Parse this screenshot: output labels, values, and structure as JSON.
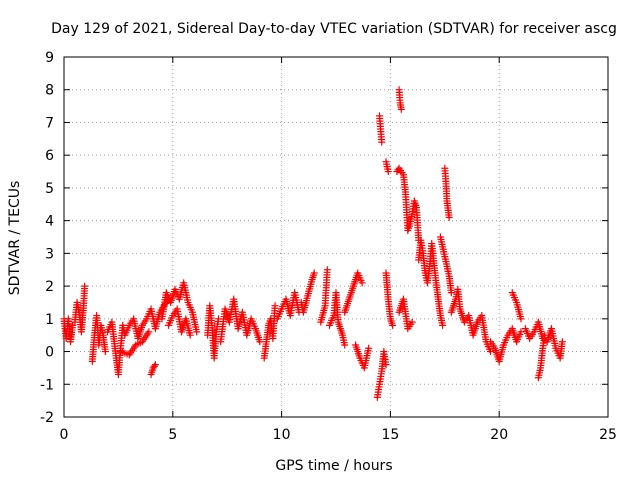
{
  "chart_data": {
    "type": "scatter",
    "title": "Day 129 of 2021, Sidereal Day-to-day VTEC variation (SDTVAR) for receiver ascg",
    "xlabel": "GPS time / hours",
    "ylabel": "SDTVAR / TECUs",
    "xlim": [
      0,
      25
    ],
    "ylim": [
      -2,
      9
    ],
    "xticks": [
      0,
      5,
      10,
      15,
      20,
      25
    ],
    "yticks": [
      -2,
      -1,
      0,
      1,
      2,
      3,
      4,
      5,
      6,
      7,
      8,
      9
    ],
    "grid": true,
    "legend": "none",
    "marker": "+",
    "series": [
      {
        "name": "SDTVAR",
        "color": "#ff0000",
        "segments": [
          [
            [
              0.0,
              1.0
            ],
            [
              0.1,
              0.4
            ],
            [
              0.2,
              1.0
            ],
            [
              0.3,
              0.3
            ],
            [
              0.4,
              0.8
            ]
          ],
          [
            [
              0.5,
              0.9
            ],
            [
              0.6,
              1.5
            ],
            [
              0.7,
              1.2
            ],
            [
              0.8,
              0.6
            ],
            [
              0.9,
              1.4
            ],
            [
              0.95,
              2.0
            ]
          ],
          [
            [
              1.3,
              -0.3
            ],
            [
              1.4,
              0.5
            ],
            [
              1.5,
              1.1
            ],
            [
              1.6,
              0.2
            ],
            [
              1.7,
              0.8
            ],
            [
              1.8,
              0.5
            ],
            [
              1.9,
              0.0
            ]
          ],
          [
            [
              2.0,
              0.6
            ],
            [
              2.2,
              0.9
            ],
            [
              2.4,
              -0.2
            ],
            [
              2.5,
              -0.7
            ],
            [
              2.6,
              0.1
            ],
            [
              2.7,
              0.8
            ],
            [
              2.8,
              0.5
            ],
            [
              3.0,
              0.8
            ],
            [
              3.2,
              1.0
            ],
            [
              3.4,
              0.4
            ],
            [
              3.6,
              0.8
            ],
            [
              3.8,
              1.0
            ],
            [
              4.0,
              1.3
            ],
            [
              4.2,
              0.7
            ],
            [
              4.4,
              1.2
            ],
            [
              4.6,
              1.4
            ],
            [
              4.8,
              1.6
            ]
          ],
          [
            [
              2.6,
              0.0
            ],
            [
              3.0,
              -0.1
            ],
            [
              3.3,
              0.2
            ],
            [
              3.6,
              0.3
            ],
            [
              3.9,
              0.6
            ]
          ],
          [
            [
              4.0,
              -0.7
            ],
            [
              4.1,
              -0.5
            ],
            [
              4.2,
              -0.4
            ]
          ],
          [
            [
              4.5,
              1.0
            ],
            [
              4.7,
              1.8
            ],
            [
              4.9,
              1.5
            ],
            [
              5.1,
              1.9
            ],
            [
              5.3,
              1.6
            ],
            [
              5.5,
              2.1
            ],
            [
              5.7,
              1.5
            ],
            [
              5.9,
              1.2
            ],
            [
              6.1,
              0.6
            ]
          ],
          [
            [
              4.8,
              0.8
            ],
            [
              5.0,
              1.1
            ],
            [
              5.2,
              1.3
            ],
            [
              5.4,
              0.6
            ],
            [
              5.6,
              1.0
            ],
            [
              5.8,
              0.5
            ]
          ],
          [
            [
              6.6,
              0.5
            ],
            [
              6.7,
              1.4
            ],
            [
              6.8,
              0.8
            ],
            [
              6.9,
              -0.2
            ],
            [
              7.0,
              0.6
            ],
            [
              7.1,
              1.0
            ]
          ],
          [
            [
              7.2,
              0.3
            ],
            [
              7.4,
              1.3
            ],
            [
              7.6,
              0.9
            ],
            [
              7.8,
              1.6
            ],
            [
              8.0,
              0.7
            ],
            [
              8.2,
              1.2
            ],
            [
              8.4,
              0.5
            ],
            [
              8.6,
              1.0
            ],
            [
              8.8,
              0.7
            ],
            [
              9.0,
              0.3
            ]
          ],
          [
            [
              9.2,
              -0.2
            ],
            [
              9.3,
              0.3
            ],
            [
              9.4,
              0.8
            ],
            [
              9.5,
              1.0
            ],
            [
              9.6,
              0.4
            ],
            [
              9.7,
              1.4
            ]
          ],
          [
            [
              9.8,
              1.0
            ],
            [
              10.0,
              1.3
            ],
            [
              10.2,
              1.6
            ],
            [
              10.4,
              1.1
            ],
            [
              10.6,
              1.8
            ],
            [
              10.8,
              1.2
            ]
          ],
          [
            [
              10.9,
              1.5
            ],
            [
              11.0,
              1.2
            ],
            [
              11.2,
              1.7
            ],
            [
              11.4,
              2.2
            ],
            [
              11.5,
              2.4
            ]
          ],
          [
            [
              11.8,
              0.9
            ],
            [
              12.0,
              1.4
            ],
            [
              12.1,
              2.5
            ]
          ],
          [
            [
              12.2,
              0.8
            ],
            [
              12.4,
              1.1
            ],
            [
              12.5,
              1.8
            ],
            [
              12.6,
              0.9
            ],
            [
              12.8,
              0.5
            ],
            [
              12.9,
              0.2
            ]
          ],
          [
            [
              12.9,
              1.2
            ],
            [
              13.1,
              1.6
            ],
            [
              13.3,
              2.0
            ],
            [
              13.5,
              2.4
            ],
            [
              13.7,
              2.1
            ]
          ],
          [
            [
              13.4,
              0.2
            ],
            [
              13.6,
              -0.2
            ],
            [
              13.8,
              -0.5
            ],
            [
              14.0,
              0.1
            ]
          ],
          [
            [
              14.4,
              -1.4
            ],
            [
              14.5,
              -1.0
            ],
            [
              14.6,
              -0.6
            ],
            [
              14.7,
              0.0
            ],
            [
              14.8,
              -0.4
            ]
          ],
          [
            [
              14.5,
              7.2
            ],
            [
              14.55,
              6.8
            ],
            [
              14.6,
              6.4
            ]
          ],
          [
            [
              14.8,
              2.4
            ],
            [
              14.9,
              1.6
            ],
            [
              15.0,
              1.0
            ],
            [
              15.1,
              0.8
            ]
          ],
          [
            [
              14.8,
              5.8
            ],
            [
              14.9,
              5.5
            ]
          ],
          [
            [
              15.4,
              8.0
            ],
            [
              15.45,
              7.6
            ],
            [
              15.5,
              7.4
            ]
          ],
          [
            [
              15.3,
              5.5
            ],
            [
              15.4,
              5.6
            ],
            [
              15.6,
              5.4
            ],
            [
              15.7,
              4.8
            ],
            [
              15.8,
              3.7
            ],
            [
              15.9,
              3.9
            ],
            [
              16.0,
              4.2
            ],
            [
              16.1,
              4.6
            ],
            [
              16.2,
              4.4
            ],
            [
              16.3,
              3.4
            ]
          ],
          [
            [
              15.4,
              1.2
            ],
            [
              15.6,
              1.6
            ],
            [
              15.8,
              0.7
            ],
            [
              16.0,
              0.9
            ]
          ],
          [
            [
              16.3,
              2.8
            ],
            [
              16.4,
              3.4
            ],
            [
              16.5,
              3.0
            ],
            [
              16.6,
              2.4
            ],
            [
              16.7,
              2.1
            ],
            [
              16.8,
              2.6
            ],
            [
              16.9,
              3.3
            ],
            [
              17.0,
              2.7
            ],
            [
              17.1,
              2.1
            ],
            [
              17.2,
              1.6
            ],
            [
              17.3,
              1.1
            ],
            [
              17.4,
              0.8
            ]
          ],
          [
            [
              17.5,
              5.6
            ],
            [
              17.55,
              5.2
            ],
            [
              17.6,
              4.6
            ],
            [
              17.7,
              4.1
            ]
          ],
          [
            [
              17.3,
              3.5
            ],
            [
              17.5,
              2.9
            ],
            [
              17.7,
              2.3
            ],
            [
              17.8,
              1.8
            ]
          ],
          [
            [
              17.8,
              1.2
            ],
            [
              18.0,
              1.6
            ],
            [
              18.1,
              1.9
            ],
            [
              18.2,
              1.3
            ],
            [
              18.4,
              0.9
            ],
            [
              18.6,
              1.1
            ],
            [
              18.8,
              0.5
            ],
            [
              19.0,
              0.9
            ],
            [
              19.2,
              1.1
            ],
            [
              19.4,
              0.3
            ],
            [
              19.6,
              0.0
            ]
          ],
          [
            [
              19.6,
              0.3
            ],
            [
              19.8,
              0.1
            ],
            [
              20.0,
              -0.3
            ],
            [
              20.2,
              0.2
            ],
            [
              20.4,
              0.5
            ],
            [
              20.6,
              0.7
            ],
            [
              20.8,
              0.3
            ],
            [
              21.0,
              0.6
            ]
          ],
          [
            [
              20.6,
              1.8
            ],
            [
              20.8,
              1.5
            ],
            [
              21.0,
              1.0
            ]
          ],
          [
            [
              21.2,
              0.7
            ],
            [
              21.4,
              0.4
            ],
            [
              21.6,
              0.6
            ],
            [
              21.8,
              0.9
            ],
            [
              22.0,
              0.4
            ],
            [
              22.2,
              0.3
            ],
            [
              22.4,
              0.7
            ],
            [
              22.6,
              0.1
            ],
            [
              22.8,
              -0.2
            ],
            [
              22.9,
              0.3
            ]
          ],
          [
            [
              21.8,
              -0.8
            ],
            [
              21.9,
              -0.5
            ],
            [
              22.0,
              0.1
            ],
            [
              22.1,
              0.5
            ]
          ]
        ]
      }
    ]
  }
}
